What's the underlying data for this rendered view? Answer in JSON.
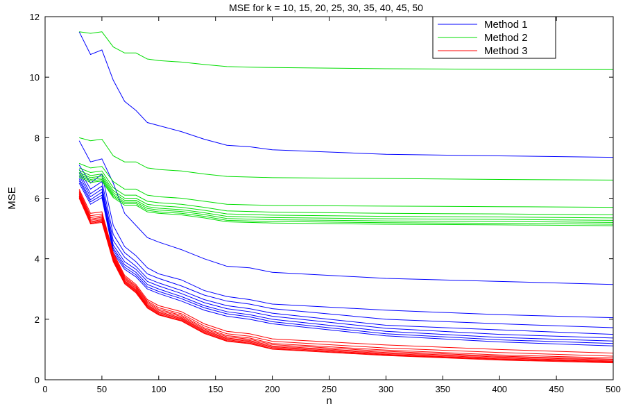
{
  "chart_data": {
    "type": "line",
    "title": "MSE for k = 10, 15, 20, 25, 30, 35, 40, 45, 50",
    "xlabel": "n",
    "ylabel": "MSE",
    "xlim": [
      0,
      500
    ],
    "ylim": [
      0,
      12
    ],
    "xticks": [
      0,
      50,
      100,
      150,
      200,
      250,
      300,
      350,
      400,
      450,
      500
    ],
    "yticks": [
      0,
      2,
      4,
      6,
      8,
      10,
      12
    ],
    "grid": false,
    "legend_position": "top-right",
    "x": [
      30,
      40,
      50,
      60,
      70,
      80,
      90,
      100,
      120,
      140,
      160,
      180,
      200,
      300,
      400,
      500
    ],
    "series": [
      {
        "name": "Method 1",
        "color": "#0000ff",
        "values": [
          11.5,
          10.75,
          10.9,
          9.9,
          9.2,
          8.9,
          8.5,
          8.4,
          8.2,
          7.95,
          7.75,
          7.7,
          7.6,
          7.45,
          7.4,
          7.35
        ]
      },
      {
        "name": "",
        "color": "#0000ff",
        "values": [
          7.9,
          7.2,
          7.3,
          6.5,
          5.5,
          5.1,
          4.7,
          4.55,
          4.3,
          4.0,
          3.75,
          3.7,
          3.55,
          3.35,
          3.25,
          3.15
        ]
      },
      {
        "name": "",
        "color": "#0000ff",
        "values": [
          7.1,
          6.5,
          6.8,
          5.1,
          4.4,
          4.1,
          3.7,
          3.5,
          3.3,
          2.95,
          2.75,
          2.65,
          2.5,
          2.3,
          2.15,
          2.05
        ]
      },
      {
        "name": "",
        "color": "#0000ff",
        "values": [
          6.95,
          6.3,
          6.55,
          4.8,
          4.2,
          3.9,
          3.5,
          3.35,
          3.1,
          2.8,
          2.6,
          2.5,
          2.35,
          2.0,
          1.85,
          1.72
        ]
      },
      {
        "name": "",
        "color": "#0000ff",
        "values": [
          6.85,
          6.15,
          6.4,
          4.6,
          4.05,
          3.75,
          3.35,
          3.2,
          2.95,
          2.65,
          2.45,
          2.35,
          2.2,
          1.8,
          1.65,
          1.5
        ]
      },
      {
        "name": "",
        "color": "#0000ff",
        "values": [
          6.75,
          6.05,
          6.3,
          4.45,
          3.9,
          3.65,
          3.25,
          3.1,
          2.85,
          2.55,
          2.35,
          2.25,
          2.1,
          1.7,
          1.5,
          1.38
        ]
      },
      {
        "name": "",
        "color": "#0000ff",
        "values": [
          6.65,
          5.95,
          6.2,
          4.35,
          3.8,
          3.55,
          3.15,
          3.0,
          2.75,
          2.45,
          2.25,
          2.15,
          2.0,
          1.6,
          1.4,
          1.28
        ]
      },
      {
        "name": "",
        "color": "#0000ff",
        "values": [
          6.58,
          5.88,
          6.1,
          4.28,
          3.72,
          3.47,
          3.07,
          2.92,
          2.68,
          2.38,
          2.18,
          2.08,
          1.92,
          1.52,
          1.32,
          1.2
        ]
      },
      {
        "name": "",
        "color": "#0000ff",
        "values": [
          6.5,
          5.8,
          6.02,
          4.2,
          3.65,
          3.4,
          3.0,
          2.85,
          2.6,
          2.3,
          2.1,
          2.0,
          1.85,
          1.45,
          1.25,
          1.12
        ]
      },
      {
        "name": "Method 2",
        "color": "#00dd00",
        "values": [
          11.5,
          11.45,
          11.5,
          11.0,
          10.8,
          10.8,
          10.6,
          10.55,
          10.5,
          10.42,
          10.35,
          10.33,
          10.32,
          10.28,
          10.26,
          10.25
        ]
      },
      {
        "name": "",
        "color": "#00dd00",
        "values": [
          8.0,
          7.9,
          7.95,
          7.4,
          7.2,
          7.2,
          7.0,
          6.95,
          6.9,
          6.8,
          6.72,
          6.7,
          6.68,
          6.65,
          6.62,
          6.6
        ]
      },
      {
        "name": "",
        "color": "#00dd00",
        "values": [
          7.15,
          7.0,
          7.05,
          6.55,
          6.3,
          6.3,
          6.1,
          6.05,
          6.0,
          5.9,
          5.8,
          5.78,
          5.76,
          5.74,
          5.72,
          5.7
        ]
      },
      {
        "name": "",
        "color": "#00dd00",
        "values": [
          7.0,
          6.85,
          6.9,
          6.35,
          6.1,
          6.1,
          5.9,
          5.85,
          5.8,
          5.7,
          5.58,
          5.56,
          5.54,
          5.5,
          5.48,
          5.45
        ]
      },
      {
        "name": "",
        "color": "#00dd00",
        "values": [
          6.92,
          6.75,
          6.8,
          6.25,
          6.0,
          6.0,
          5.8,
          5.75,
          5.7,
          5.6,
          5.48,
          5.46,
          5.44,
          5.4,
          5.38,
          5.35
        ]
      },
      {
        "name": "",
        "color": "#00dd00",
        "values": [
          6.85,
          6.68,
          6.73,
          6.18,
          5.93,
          5.93,
          5.72,
          5.67,
          5.62,
          5.52,
          5.4,
          5.38,
          5.36,
          5.32,
          5.3,
          5.27
        ]
      },
      {
        "name": "",
        "color": "#00dd00",
        "values": [
          6.8,
          6.62,
          6.67,
          6.12,
          5.87,
          5.87,
          5.66,
          5.61,
          5.56,
          5.46,
          5.33,
          5.31,
          5.29,
          5.25,
          5.23,
          5.2
        ]
      },
      {
        "name": "",
        "color": "#00dd00",
        "values": [
          6.75,
          6.57,
          6.62,
          6.07,
          5.82,
          5.82,
          5.6,
          5.55,
          5.5,
          5.4,
          5.27,
          5.25,
          5.23,
          5.19,
          5.17,
          5.14
        ]
      },
      {
        "name": "",
        "color": "#00dd00",
        "values": [
          6.7,
          6.52,
          6.57,
          6.02,
          5.77,
          5.77,
          5.55,
          5.5,
          5.45,
          5.35,
          5.22,
          5.2,
          5.18,
          5.14,
          5.12,
          5.09
        ]
      },
      {
        "name": "Method 3",
        "color": "#ff0000",
        "values": [
          6.3,
          5.5,
          5.55,
          4.2,
          3.45,
          3.15,
          2.65,
          2.45,
          2.25,
          1.85,
          1.6,
          1.52,
          1.35,
          1.15,
          1.0,
          0.88
        ]
      },
      {
        "name": "",
        "color": "#ff0000",
        "values": [
          6.25,
          5.42,
          5.48,
          4.15,
          3.4,
          3.1,
          2.6,
          2.38,
          2.18,
          1.78,
          1.52,
          1.44,
          1.27,
          1.05,
          0.9,
          0.78
        ]
      },
      {
        "name": "",
        "color": "#ff0000",
        "values": [
          6.2,
          5.36,
          5.42,
          4.1,
          3.36,
          3.06,
          2.56,
          2.33,
          2.13,
          1.72,
          1.46,
          1.38,
          1.2,
          0.98,
          0.82,
          0.72
        ]
      },
      {
        "name": "",
        "color": "#ff0000",
        "values": [
          6.16,
          5.31,
          5.37,
          4.06,
          3.32,
          3.02,
          2.52,
          2.29,
          2.09,
          1.68,
          1.42,
          1.34,
          1.16,
          0.94,
          0.78,
          0.68
        ]
      },
      {
        "name": "",
        "color": "#ff0000",
        "values": [
          6.12,
          5.27,
          5.33,
          4.02,
          3.28,
          2.98,
          2.48,
          2.25,
          2.05,
          1.64,
          1.38,
          1.3,
          1.12,
          0.9,
          0.75,
          0.65
        ]
      },
      {
        "name": "",
        "color": "#ff0000",
        "values": [
          6.08,
          5.23,
          5.29,
          3.98,
          3.25,
          2.95,
          2.45,
          2.22,
          2.02,
          1.61,
          1.35,
          1.27,
          1.09,
          0.87,
          0.72,
          0.62
        ]
      },
      {
        "name": "",
        "color": "#ff0000",
        "values": [
          6.05,
          5.2,
          5.26,
          3.95,
          3.22,
          2.92,
          2.42,
          2.19,
          1.99,
          1.58,
          1.32,
          1.24,
          1.06,
          0.84,
          0.69,
          0.6
        ]
      },
      {
        "name": "",
        "color": "#ff0000",
        "values": [
          6.02,
          5.17,
          5.23,
          3.92,
          3.19,
          2.89,
          2.39,
          2.16,
          1.96,
          1.55,
          1.29,
          1.21,
          1.03,
          0.82,
          0.67,
          0.58
        ]
      },
      {
        "name": "",
        "color": "#ff0000",
        "values": [
          6.0,
          5.15,
          5.2,
          3.9,
          3.17,
          2.87,
          2.37,
          2.14,
          1.94,
          1.53,
          1.27,
          1.19,
          1.01,
          0.8,
          0.65,
          0.56
        ]
      }
    ]
  }
}
